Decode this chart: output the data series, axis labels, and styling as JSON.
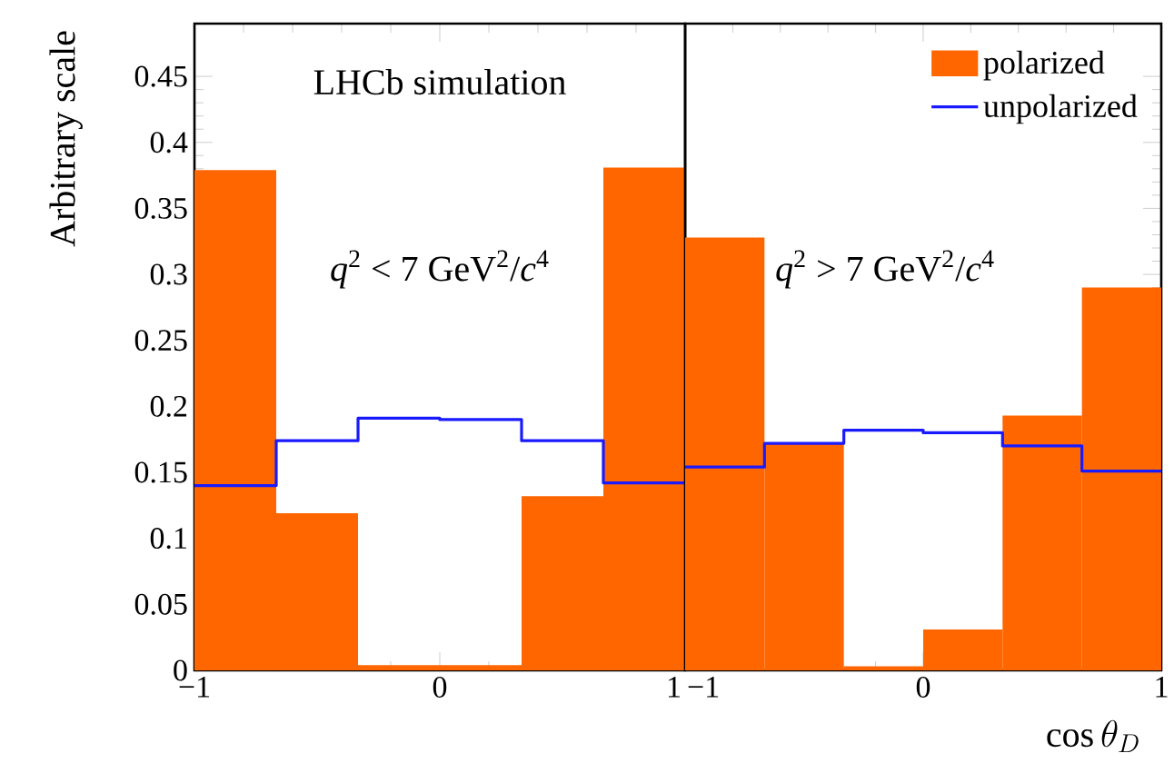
{
  "chart_data": [
    {
      "type": "histogram",
      "ylabel": "Arbitrary scale",
      "annotations": [
        "LHCb simulation",
        "*q*$^{2}$ < 7 GeV$^{2}$/*c*$^{4}$"
      ],
      "bins": [
        -1,
        -0.6667,
        -0.3333,
        0,
        0.3333,
        0.6667,
        1
      ],
      "series": [
        {
          "color": "#ff6600",
          "values": [
            0.379,
            0.119,
            0.004,
            0.004,
            0.132,
            0.381
          ]
        },
        {
          "type": "step",
          "color": "#1a1aff",
          "x": [
            -1,
            -0.6667,
            -0.3333,
            0,
            0.3333,
            0.6667,
            1
          ],
          "values": [
            0.14,
            0.174,
            0.191,
            0.19,
            0.174,
            0.142,
            0.142
          ]
        }
      ],
      "xlim": [
        -1,
        1
      ],
      "xticks": [
        {
          "value": -1,
          "label": "−1"
        },
        0,
        1
      ],
      "ylim": [
        0,
        0.49
      ],
      "yticks": [
        0,
        0.05,
        0.1,
        0.15,
        0.2,
        0.25,
        0.3,
        0.35,
        0.4,
        0.45
      ]
    },
    {
      "type": "histogram",
      "xlabel": "\\cos\\theta_{D}",
      "annotations": [
        "*q*$^{2}$ > 7 GeV$^{2}$/*c*$^{4}$"
      ],
      "bins": [
        -1,
        -0.6667,
        -0.3333,
        0,
        0.3333,
        0.6667,
        1
      ],
      "series": [
        {
          "name": "polarized",
          "color": "#ff6600",
          "values": [
            0.328,
            0.172,
            0.003,
            0.031,
            0.193,
            0.29
          ]
        },
        {
          "name": "unpolarized",
          "type": "step",
          "color": "#1a1aff",
          "x": [
            -1,
            -0.6667,
            -0.3333,
            0,
            0.3333,
            0.6667,
            1
          ],
          "values": [
            0.154,
            0.172,
            0.182,
            0.18,
            0.17,
            0.151,
            0.151
          ]
        }
      ],
      "xlim": [
        -1,
        1
      ],
      "xticks": [
        {
          "value": -1,
          "label": "−1"
        },
        0,
        1
      ],
      "ylim": [
        0,
        0.49
      ],
      "yticks": [
        0,
        0.05,
        0.1,
        0.15,
        0.2,
        0.25,
        0.3,
        0.35,
        0.4,
        0.45
      ],
      "tick_labels": "x",
      "legend": "top right"
    }
  ]
}
